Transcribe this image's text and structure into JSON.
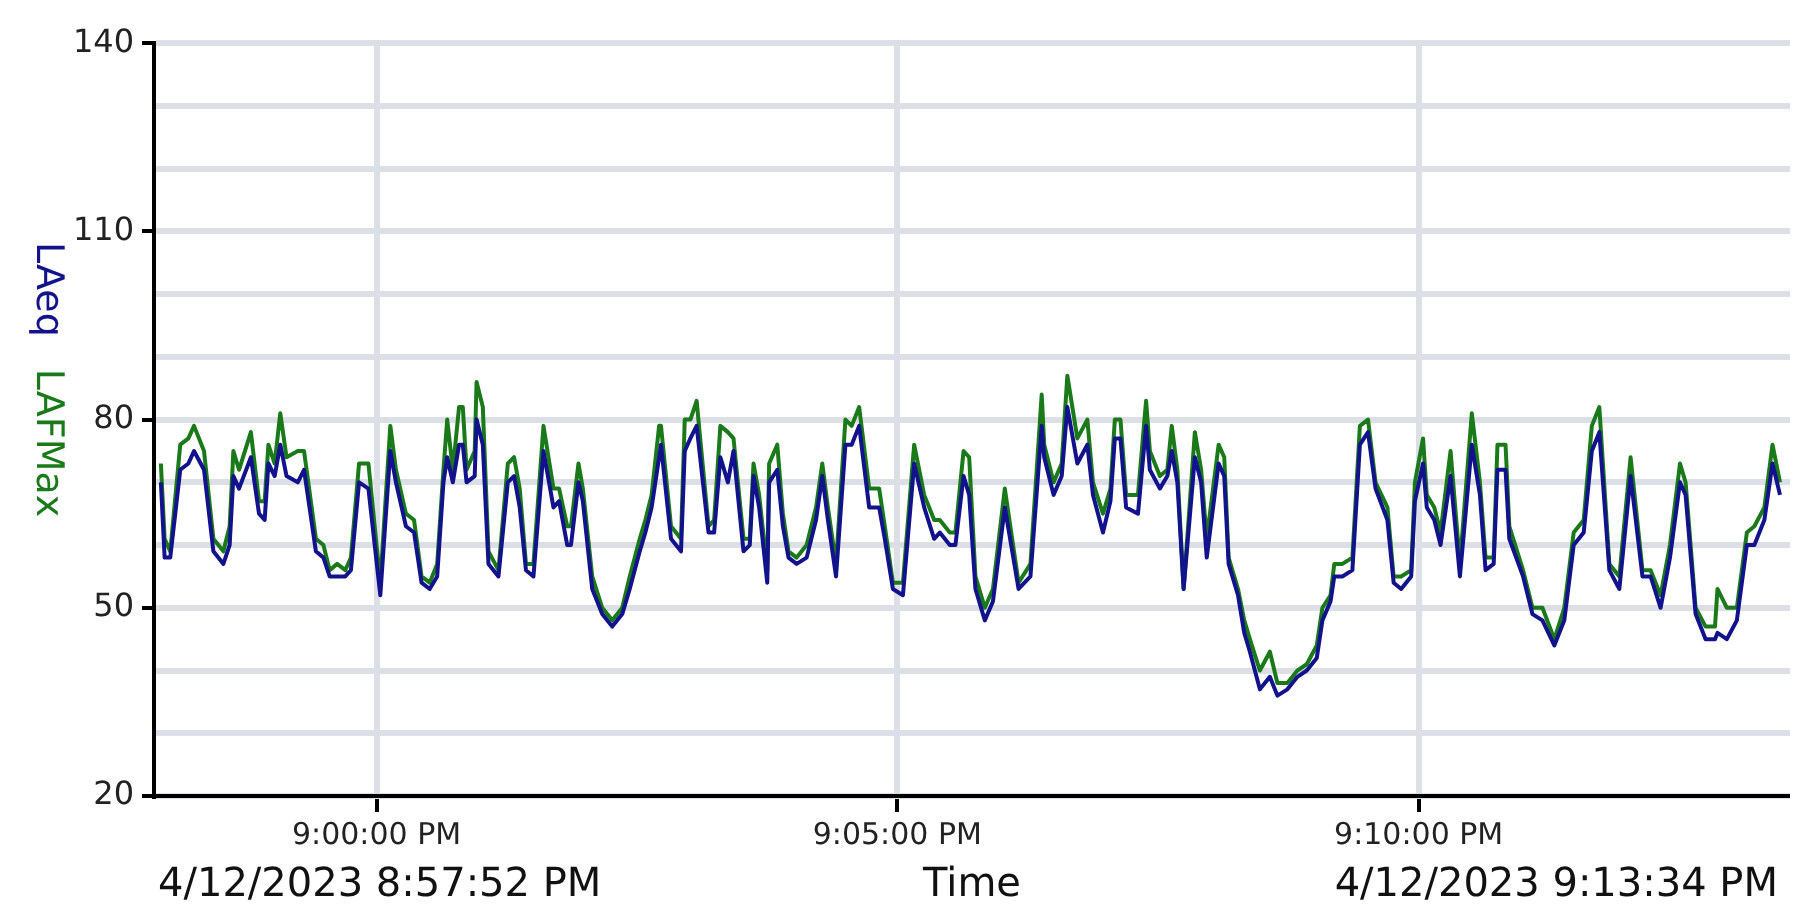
{
  "chart_data": {
    "type": "line",
    "xlabel": "Time",
    "annotations": [
      "4/12/2023 8:57:52 PM",
      "4/12/2023 9:13:34 PM"
    ],
    "x": [
      20.9655,
      20.9661,
      20.967,
      20.9686,
      20.9699,
      20.9708,
      20.9724,
      20.9739,
      20.9755,
      20.9765,
      20.9771,
      20.978,
      20.9799,
      20.9812,
      20.9821,
      20.9827,
      20.9837,
      20.9846,
      20.9856,
      20.9874,
      20.9884,
      20.9903,
      20.9915,
      20.9925,
      20.9937,
      20.995,
      20.9959,
      20.9972,
      20.9987,
      21.0006,
      21.0022,
      21.0031,
      21.0047,
      21.006,
      21.0072,
      21.0085,
      21.0097,
      21.0107,
      21.0113,
      21.0122,
      21.0132,
      21.0138,
      21.0144,
      21.0157,
      21.016,
      21.017,
      21.0179,
      21.0195,
      21.021,
      21.022,
      21.0229,
      21.0239,
      21.0251,
      21.0267,
      21.0283,
      21.0292,
      21.0305,
      21.0311,
      21.0323,
      21.033,
      21.0345,
      21.0361,
      21.0377,
      21.0393,
      21.0405,
      21.0421,
      21.043,
      21.044,
      21.0452,
      21.0455,
      21.0471,
      21.0487,
      21.0493,
      21.0502,
      21.0512,
      21.0531,
      21.054,
      21.055,
      21.0562,
      21.0571,
      21.0587,
      21.0597,
      21.0603,
      21.0612,
      21.0625,
      21.0628,
      21.0641,
      21.065,
      21.0659,
      21.0672,
      21.0688,
      21.0703,
      21.0713,
      21.0722,
      21.0735,
      21.075,
      21.076,
      21.0772,
      21.0788,
      21.0804,
      21.0813,
      21.0826,
      21.0842,
      21.086,
      21.0876,
      21.0892,
      21.0901,
      21.0917,
      21.0926,
      21.0939,
      21.0948,
      21.0958,
      21.0973,
      21.0986,
      21.1005,
      21.1027,
      21.1046,
      21.1064,
      21.1068,
      21.1083,
      21.1096,
      21.1105,
      21.1121,
      21.1137,
      21.1146,
      21.1162,
      21.1174,
      21.1181,
      21.119,
      21.1199,
      21.1218,
      21.1231,
      21.1237,
      21.1253,
      21.1265,
      21.1272,
      21.1281,
      21.1291,
      21.1309,
      21.1319,
      21.1328,
      21.1347,
      21.1356,
      21.1363,
      21.1378,
      21.1388,
      21.1397,
      21.1413,
      21.1429,
      21.1441,
      21.1457,
      21.1473,
      21.1488,
      21.1504,
      21.1513,
      21.1526,
      21.1532,
      21.1545,
      21.1561,
      21.1573,
      21.1586,
      21.1598,
      21.1617,
      21.1627,
      21.1639,
      21.1655,
      21.1661,
      21.1674,
      21.168,
      21.1692,
      21.1702,
      21.1718,
      21.1733,
      21.1752,
      21.1765,
      21.1774,
      21.1787,
      21.1793,
      21.1806,
      21.1812,
      21.1834,
      21.1849,
      21.1865,
      21.1884,
      21.19,
      21.1915,
      21.1931,
      21.1944,
      21.1956,
      21.1972,
      21.1988,
      21.2006,
      21.2025,
      21.2038,
      21.2054,
      21.2069,
      21.2085,
      21.2094,
      21.211,
      21.2126,
      21.2141,
      21.2145,
      21.216,
      21.2176,
      21.2192,
      21.2204,
      21.222,
      21.2233,
      21.2245
    ],
    "series": [
      {
        "name": "LAeq",
        "color": "#12128c",
        "values": [
          70,
          58,
          58,
          72,
          73,
          75,
          72,
          59,
          57,
          60,
          71,
          69,
          74,
          65,
          64,
          73,
          71,
          76,
          71,
          70,
          72,
          59,
          58,
          55,
          55,
          55,
          56,
          70,
          69,
          52,
          75,
          70,
          63,
          62,
          54,
          53,
          55,
          70,
          74,
          70,
          76,
          76,
          70,
          71,
          80,
          76,
          57,
          55,
          70,
          71,
          66,
          56,
          55,
          75,
          66,
          67,
          60,
          60,
          70,
          67,
          53,
          49,
          47,
          49,
          53,
          59,
          62,
          66,
          74,
          76,
          61,
          59,
          75,
          77,
          79,
          62,
          62,
          74,
          70,
          75,
          59,
          60,
          71,
          66,
          54,
          70,
          72,
          63,
          58,
          57,
          58,
          64,
          71,
          64,
          55,
          76,
          76,
          79,
          66,
          66,
          61,
          53,
          52,
          73,
          66,
          61,
          62,
          60,
          60,
          71,
          68,
          53,
          48,
          51,
          66,
          53,
          55,
          79,
          74,
          68,
          71,
          82,
          73,
          76,
          68,
          62,
          67,
          77,
          77,
          66,
          65,
          79,
          72,
          69,
          71,
          75,
          70,
          53,
          74,
          70,
          58,
          73,
          71,
          57,
          52,
          46,
          43,
          37,
          39,
          36,
          37,
          39,
          40,
          42,
          48,
          51,
          55,
          55,
          56,
          76,
          78,
          69,
          64,
          54,
          53,
          55,
          67,
          73,
          66,
          64,
          60,
          71,
          55,
          76,
          68,
          56,
          57,
          72,
          72,
          61,
          55,
          49,
          48,
          44,
          48,
          60,
          62,
          75,
          78,
          56,
          53,
          71,
          55,
          55,
          50,
          58,
          70,
          68,
          49,
          45,
          45,
          46,
          45,
          48,
          60,
          60,
          64,
          73,
          68
        ]
      },
      {
        "name": "LAFMax",
        "color": "#1a7a1a",
        "values": [
          73,
          61,
          59,
          76,
          77,
          79,
          75,
          61,
          59,
          63,
          75,
          72,
          78,
          67,
          67,
          76,
          73,
          81,
          74,
          75,
          75,
          61,
          60,
          56,
          57,
          56,
          58,
          73,
          73,
          54,
          79,
          72,
          65,
          64,
          55,
          54,
          57,
          72,
          80,
          72,
          82,
          82,
          72,
          75,
          86,
          82,
          59,
          56,
          73,
          74,
          69,
          57,
          57,
          79,
          69,
          69,
          63,
          63,
          73,
          69,
          55,
          50,
          48,
          50,
          55,
          61,
          64,
          68,
          79,
          79,
          63,
          61,
          80,
          80,
          83,
          63,
          64,
          79,
          78,
          77,
          61,
          61,
          73,
          68,
          56,
          73,
          76,
          65,
          59,
          58,
          60,
          66,
          73,
          66,
          57,
          80,
          79,
          82,
          69,
          69,
          63,
          54,
          54,
          76,
          68,
          64,
          64,
          62,
          62,
          75,
          74,
          55,
          50,
          53,
          69,
          54,
          57,
          84,
          76,
          70,
          73,
          87,
          77,
          80,
          70,
          65,
          69,
          80,
          80,
          68,
          68,
          83,
          75,
          71,
          72,
          79,
          72,
          53,
          78,
          72,
          61,
          76,
          74,
          58,
          53,
          48,
          45,
          40,
          43,
          38,
          38,
          40,
          41,
          44,
          50,
          52,
          57,
          57,
          58,
          79,
          80,
          70,
          66,
          55,
          55,
          56,
          70,
          77,
          68,
          66,
          62,
          75,
          57,
          81,
          70,
          58,
          58,
          76,
          76,
          63,
          56,
          50,
          50,
          45,
          50,
          62,
          64,
          79,
          82,
          57,
          55,
          74,
          56,
          56,
          52,
          60,
          73,
          70,
          50,
          47,
          47,
          53,
          50,
          50,
          62,
          63,
          66,
          76,
          70
        ]
      }
    ],
    "xlim": [
      20.9644,
      21.2261
    ],
    "xticks": [
      {
        "value": 21,
        "label": "9:00:00 PM"
      },
      {
        "value": 21.0833,
        "label": "9:05:00 PM"
      },
      {
        "value": 21.1667,
        "label": "9:10:00 PM"
      }
    ],
    "ylim": [
      20,
      140
    ],
    "yticks": [
      20,
      {
        "value": 30,
        "label": null
      },
      {
        "value": 40,
        "label": null
      },
      50,
      {
        "value": 60,
        "label": null
      },
      {
        "value": 70,
        "label": null
      },
      80,
      {
        "value": 90,
        "label": null
      },
      {
        "value": 100,
        "label": null
      },
      110,
      {
        "value": 120,
        "label": null
      },
      {
        "value": 130,
        "label": null
      },
      140
    ],
    "grid": true
  }
}
